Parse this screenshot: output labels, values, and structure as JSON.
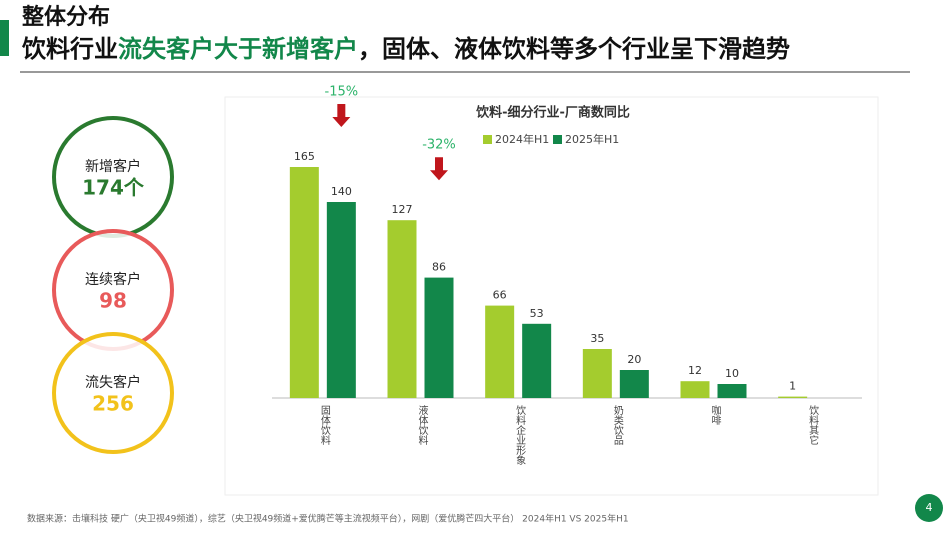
{
  "header": {
    "title": "整体分布",
    "headline": [
      "饮料行业",
      "流失客户大于新增客户",
      "，固体、液体饮料等多个行业呈下滑趋势"
    ]
  },
  "circles": [
    {
      "label": "新增客户",
      "value": "174个",
      "color": "#2a7a2f"
    },
    {
      "label": "连续客户",
      "value": "98",
      "color": "#e85a5a"
    },
    {
      "label": "流失客户",
      "value": "256",
      "color": "#f2c21b"
    }
  ],
  "chart_data": {
    "type": "bar",
    "title": "饮料-细分行业-厂商数同比",
    "categories": [
      "固体饮料",
      "液体饮料",
      "饮料企业形象",
      "奶类饮品",
      "咖啡",
      "饮料其它"
    ],
    "series": [
      {
        "name": "2024年H1",
        "color": "#a4cc2e",
        "values": [
          165,
          127,
          66,
          35,
          12,
          1
        ]
      },
      {
        "name": "2025年H1",
        "color": "#12874a",
        "values": [
          140,
          86,
          53,
          20,
          10,
          null
        ]
      }
    ],
    "ylim": [
      0,
      180
    ],
    "annotations": [
      {
        "text": "-15%",
        "category": "固体饮料"
      },
      {
        "text": "-32%",
        "category": "液体饮料"
      }
    ]
  },
  "footer": {
    "source": "数据来源：击壤科技 硬广（央卫视49频道），综艺（央卫视49频道+爱优腾芒等主流视频平台），网剧（爱优腾芒四大平台） 2024年H1 VS 2025年H1",
    "page": "4"
  }
}
